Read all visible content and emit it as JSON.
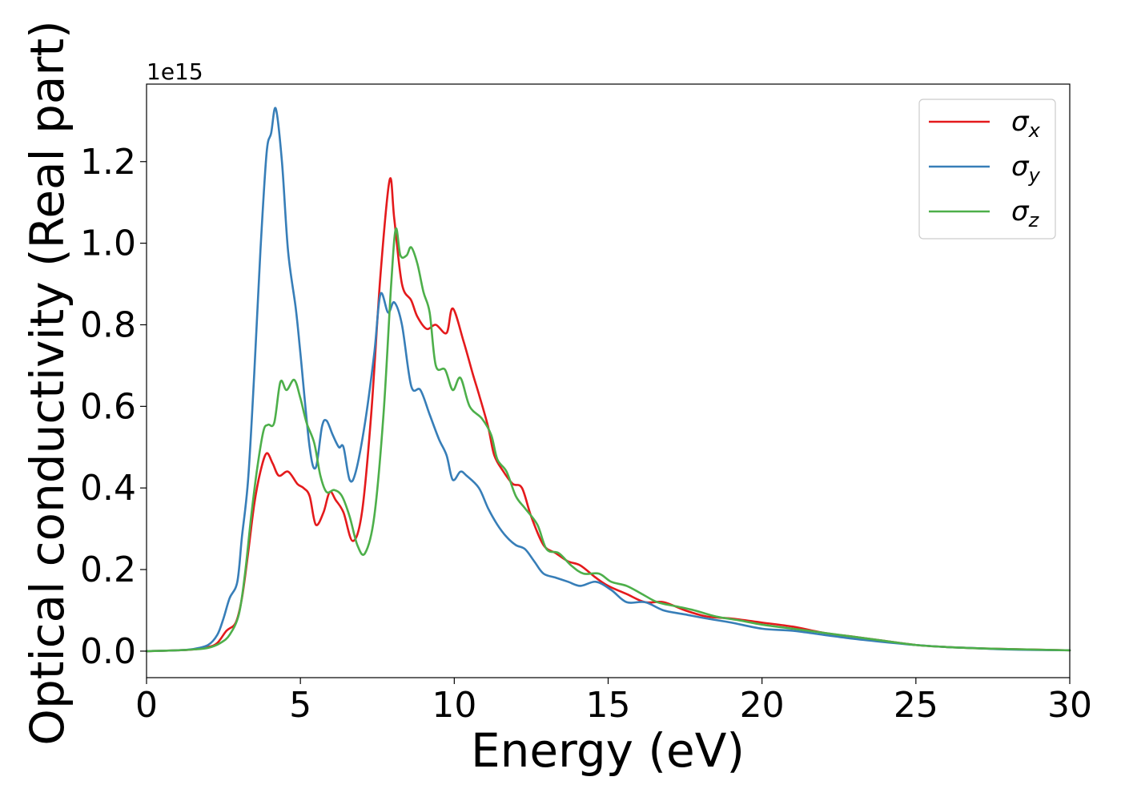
{
  "chart_data": {
    "type": "line",
    "xlabel": "Energy (eV)",
    "ylabel": "Optical conductivity (Real part)",
    "y_offset_label": "1e15",
    "xlim": [
      0,
      30
    ],
    "ylim": [
      -0.065,
      1.39
    ],
    "x_ticks": [
      0,
      5,
      10,
      15,
      20,
      25,
      30
    ],
    "y_ticks": [
      0.0,
      0.2,
      0.4,
      0.6,
      0.8,
      1.0,
      1.2
    ],
    "x_tick_labels": [
      "0",
      "5",
      "10",
      "15",
      "20",
      "25",
      "30"
    ],
    "y_tick_labels": [
      "0.0",
      "0.2",
      "0.4",
      "0.6",
      "0.8",
      "1.0",
      "1.2"
    ],
    "grid": false,
    "legend_position": "top-right",
    "series": [
      {
        "name": "σx",
        "legend_symbol": "σ",
        "legend_subscript": "x",
        "color": "#e41a1c",
        "points": [
          [
            0,
            0
          ],
          [
            1,
            0.002
          ],
          [
            1.5,
            0.004
          ],
          [
            2,
            0.01
          ],
          [
            2.3,
            0.02
          ],
          [
            2.6,
            0.05
          ],
          [
            2.9,
            0.07
          ],
          [
            3.1,
            0.13
          ],
          [
            3.3,
            0.24
          ],
          [
            3.5,
            0.36
          ],
          [
            3.7,
            0.44
          ],
          [
            3.9,
            0.485
          ],
          [
            4.1,
            0.46
          ],
          [
            4.3,
            0.43
          ],
          [
            4.6,
            0.44
          ],
          [
            4.9,
            0.41
          ],
          [
            5.1,
            0.4
          ],
          [
            5.3,
            0.38
          ],
          [
            5.5,
            0.31
          ],
          [
            5.75,
            0.34
          ],
          [
            5.95,
            0.39
          ],
          [
            6.15,
            0.37
          ],
          [
            6.4,
            0.34
          ],
          [
            6.7,
            0.27
          ],
          [
            7,
            0.34
          ],
          [
            7.3,
            0.58
          ],
          [
            7.6,
            0.92
          ],
          [
            7.9,
            1.155
          ],
          [
            8.05,
            1.06
          ],
          [
            8.3,
            0.9
          ],
          [
            8.6,
            0.86
          ],
          [
            8.8,
            0.82
          ],
          [
            9.1,
            0.79
          ],
          [
            9.4,
            0.8
          ],
          [
            9.75,
            0.78
          ],
          [
            9.95,
            0.84
          ],
          [
            10.3,
            0.76
          ],
          [
            10.6,
            0.68
          ],
          [
            10.8,
            0.63
          ],
          [
            11.1,
            0.55
          ],
          [
            11.3,
            0.48
          ],
          [
            11.6,
            0.44
          ],
          [
            11.9,
            0.41
          ],
          [
            12.2,
            0.4
          ],
          [
            12.5,
            0.33
          ],
          [
            12.9,
            0.26
          ],
          [
            13.3,
            0.24
          ],
          [
            13.7,
            0.22
          ],
          [
            14.1,
            0.21
          ],
          [
            14.6,
            0.18
          ],
          [
            15,
            0.16
          ],
          [
            15.6,
            0.14
          ],
          [
            16.2,
            0.12
          ],
          [
            16.8,
            0.12
          ],
          [
            17.5,
            0.1
          ],
          [
            18.2,
            0.085
          ],
          [
            19,
            0.08
          ],
          [
            20,
            0.07
          ],
          [
            21,
            0.06
          ],
          [
            22,
            0.045
          ],
          [
            23,
            0.035
          ],
          [
            24,
            0.025
          ],
          [
            25,
            0.015
          ],
          [
            26,
            0.01
          ],
          [
            27,
            0.007
          ],
          [
            28,
            0.005
          ],
          [
            30,
            0.002
          ]
        ]
      },
      {
        "name": "σy",
        "legend_symbol": "σ",
        "legend_subscript": "y",
        "color": "#377eb8",
        "points": [
          [
            0,
            0
          ],
          [
            1,
            0.002
          ],
          [
            1.5,
            0.005
          ],
          [
            2,
            0.015
          ],
          [
            2.3,
            0.04
          ],
          [
            2.5,
            0.08
          ],
          [
            2.7,
            0.13
          ],
          [
            2.95,
            0.17
          ],
          [
            3.1,
            0.28
          ],
          [
            3.3,
            0.42
          ],
          [
            3.5,
            0.68
          ],
          [
            3.7,
            0.98
          ],
          [
            3.9,
            1.22
          ],
          [
            4.05,
            1.27
          ],
          [
            4.2,
            1.33
          ],
          [
            4.4,
            1.2
          ],
          [
            4.6,
            0.98
          ],
          [
            4.85,
            0.84
          ],
          [
            5,
            0.73
          ],
          [
            5.3,
            0.5
          ],
          [
            5.5,
            0.45
          ],
          [
            5.7,
            0.55
          ],
          [
            5.85,
            0.565
          ],
          [
            6.05,
            0.53
          ],
          [
            6.25,
            0.5
          ],
          [
            6.4,
            0.5
          ],
          [
            6.6,
            0.42
          ],
          [
            6.8,
            0.44
          ],
          [
            7.1,
            0.56
          ],
          [
            7.4,
            0.73
          ],
          [
            7.6,
            0.875
          ],
          [
            7.85,
            0.83
          ],
          [
            8.05,
            0.855
          ],
          [
            8.3,
            0.8
          ],
          [
            8.6,
            0.65
          ],
          [
            8.9,
            0.64
          ],
          [
            9.2,
            0.58
          ],
          [
            9.5,
            0.52
          ],
          [
            9.75,
            0.48
          ],
          [
            9.95,
            0.42
          ],
          [
            10.2,
            0.44
          ],
          [
            10.4,
            0.43
          ],
          [
            10.8,
            0.4
          ],
          [
            11.1,
            0.35
          ],
          [
            11.4,
            0.31
          ],
          [
            11.7,
            0.28
          ],
          [
            12,
            0.26
          ],
          [
            12.3,
            0.25
          ],
          [
            12.6,
            0.22
          ],
          [
            12.9,
            0.19
          ],
          [
            13.3,
            0.18
          ],
          [
            13.7,
            0.17
          ],
          [
            14.1,
            0.16
          ],
          [
            14.6,
            0.17
          ],
          [
            15.1,
            0.15
          ],
          [
            15.6,
            0.12
          ],
          [
            16.2,
            0.12
          ],
          [
            16.8,
            0.1
          ],
          [
            17.5,
            0.09
          ],
          [
            18.2,
            0.08
          ],
          [
            19,
            0.07
          ],
          [
            20,
            0.055
          ],
          [
            21,
            0.05
          ],
          [
            22,
            0.04
          ],
          [
            23,
            0.03
          ],
          [
            24,
            0.022
          ],
          [
            25,
            0.015
          ],
          [
            26,
            0.01
          ],
          [
            27,
            0.007
          ],
          [
            28,
            0.004
          ],
          [
            30,
            0.002
          ]
        ]
      },
      {
        "name": "σz",
        "legend_symbol": "σ",
        "legend_subscript": "z",
        "color": "#4daf4a",
        "points": [
          [
            0,
            0
          ],
          [
            1,
            0.002
          ],
          [
            1.5,
            0.004
          ],
          [
            2,
            0.008
          ],
          [
            2.4,
            0.02
          ],
          [
            2.7,
            0.04
          ],
          [
            3,
            0.09
          ],
          [
            3.2,
            0.19
          ],
          [
            3.4,
            0.33
          ],
          [
            3.6,
            0.45
          ],
          [
            3.8,
            0.54
          ],
          [
            3.95,
            0.555
          ],
          [
            4.15,
            0.56
          ],
          [
            4.35,
            0.66
          ],
          [
            4.55,
            0.64
          ],
          [
            4.8,
            0.665
          ],
          [
            5,
            0.62
          ],
          [
            5.2,
            0.56
          ],
          [
            5.45,
            0.51
          ],
          [
            5.65,
            0.43
          ],
          [
            5.85,
            0.39
          ],
          [
            6.1,
            0.395
          ],
          [
            6.35,
            0.38
          ],
          [
            6.6,
            0.33
          ],
          [
            6.85,
            0.26
          ],
          [
            7.1,
            0.24
          ],
          [
            7.4,
            0.33
          ],
          [
            7.7,
            0.58
          ],
          [
            7.95,
            0.9
          ],
          [
            8.1,
            1.035
          ],
          [
            8.25,
            0.97
          ],
          [
            8.45,
            0.97
          ],
          [
            8.6,
            0.99
          ],
          [
            8.8,
            0.95
          ],
          [
            9,
            0.88
          ],
          [
            9.2,
            0.83
          ],
          [
            9.4,
            0.7
          ],
          [
            9.7,
            0.69
          ],
          [
            9.95,
            0.64
          ],
          [
            10.2,
            0.67
          ],
          [
            10.5,
            0.6
          ],
          [
            10.9,
            0.57
          ],
          [
            11.2,
            0.53
          ],
          [
            11.4,
            0.47
          ],
          [
            11.7,
            0.44
          ],
          [
            12,
            0.38
          ],
          [
            12.3,
            0.35
          ],
          [
            12.7,
            0.31
          ],
          [
            13,
            0.25
          ],
          [
            13.4,
            0.24
          ],
          [
            13.8,
            0.21
          ],
          [
            14.2,
            0.19
          ],
          [
            14.7,
            0.19
          ],
          [
            15.1,
            0.17
          ],
          [
            15.6,
            0.16
          ],
          [
            16.1,
            0.14
          ],
          [
            16.6,
            0.12
          ],
          [
            17.2,
            0.11
          ],
          [
            17.8,
            0.1
          ],
          [
            18.5,
            0.085
          ],
          [
            19.3,
            0.075
          ],
          [
            20,
            0.065
          ],
          [
            21,
            0.055
          ],
          [
            22,
            0.045
          ],
          [
            23,
            0.035
          ],
          [
            24,
            0.025
          ],
          [
            25,
            0.015
          ],
          [
            26,
            0.01
          ],
          [
            27,
            0.007
          ],
          [
            28,
            0.005
          ],
          [
            30,
            0.002
          ]
        ]
      }
    ]
  }
}
